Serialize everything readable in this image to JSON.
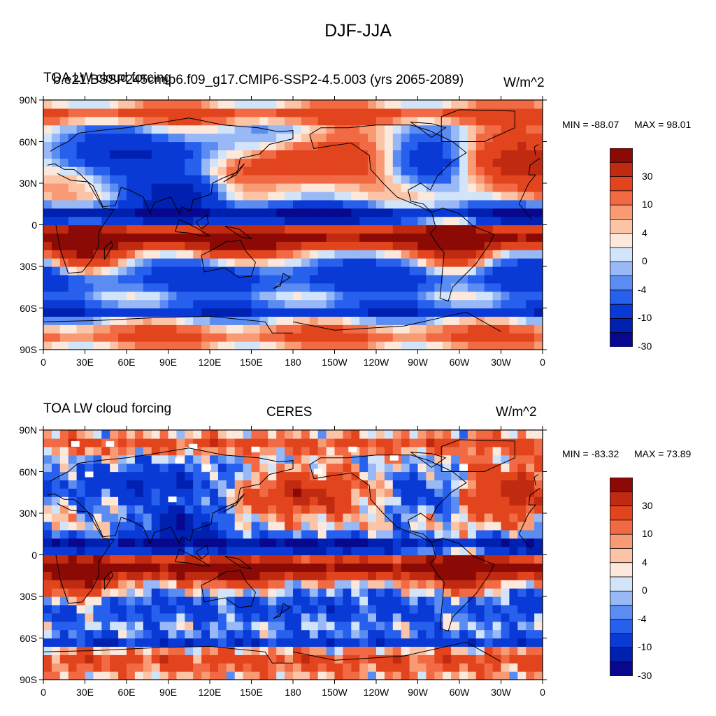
{
  "title": "DJF-JJA",
  "colors": {
    "levels": [
      "#08088f",
      "#0020b0",
      "#0a3ad6",
      "#2860ee",
      "#5a8cf2",
      "#98b8f6",
      "#d2e4fa",
      "#fde8dc",
      "#fcc4a6",
      "#f89a74",
      "#f26a44",
      "#e2451e",
      "#c02a10",
      "#8c0a06"
    ],
    "coast": "#000000",
    "missing": "#ffffff"
  },
  "panels": [
    {
      "left_title": "TOA LW cloud forcing",
      "center_title": "b.e21.BSSP245cmip6.f09_g17.CMIP6-SSP2-4.5.003 (yrs 2065-2089)",
      "units": "W/m^2",
      "min_label": "MIN = -88.07",
      "max_label": "MAX =  98.01",
      "has_missing": false
    },
    {
      "left_title": "TOA LW cloud forcing",
      "center_title": "CERES",
      "units": "W/m^2",
      "min_label": "MIN = -83.32",
      "max_label": "MAX =  73.89",
      "has_missing": true
    }
  ],
  "lat_ticks": [
    "90N",
    "60N",
    "30N",
    "0",
    "30S",
    "60S",
    "90S"
  ],
  "lon_ticks": [
    "0",
    "30E",
    "60E",
    "90E",
    "120E",
    "150E",
    "180",
    "150W",
    "120W",
    "90W",
    "60W",
    "30W",
    "0"
  ],
  "colorbar_labels": [
    "30",
    "10",
    "4",
    "0",
    "-4",
    "-10",
    "-30"
  ]
}
